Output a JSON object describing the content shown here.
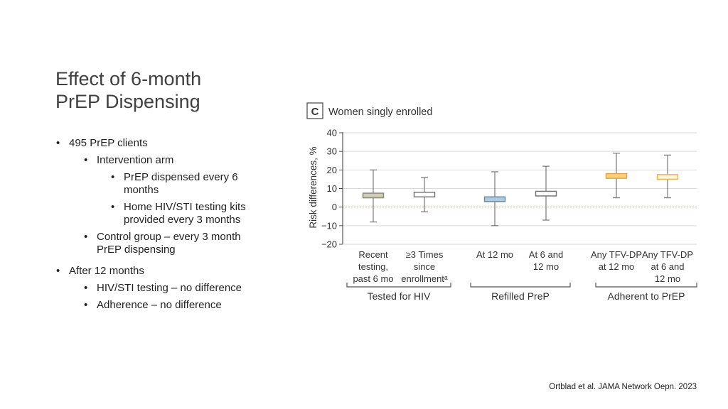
{
  "slide": {
    "title_line1": "Effect of 6-month",
    "title_line2": "PrEP Dispensing",
    "bullets": {
      "b1": "495 PrEP clients",
      "b1_1": "Intervention arm",
      "b1_1_1": "PrEP dispensed every 6 months",
      "b1_1_2": "Home HIV/STI testing kits provided every 3 months",
      "b1_2": "Control group – every 3 month PrEP dispensing",
      "b2": "After 12 months",
      "b2_1": "HIV/STI testing – no difference",
      "b2_2": "Adherence – no difference"
    },
    "citation": "Ortblad et al. JAMA Network Oepn. 2023"
  },
  "chart_data": {
    "type": "box",
    "panel_label": "C",
    "title": "Women singly enrolled",
    "ylabel": "Risk differences, %",
    "ylim": [
      -20,
      40
    ],
    "yticks": [
      -20,
      -10,
      0,
      10,
      20,
      30,
      40
    ],
    "reference_line": 0,
    "categories": [
      {
        "label": [
          "Recent",
          "testing,",
          "past 6 mo"
        ],
        "group": "Tested for HIV",
        "min": -8,
        "q1": 5,
        "q3": 7.5,
        "max": 20,
        "color": "#cfcbb8",
        "stroke": "#8d8a78"
      },
      {
        "label": [
          "≥3 Times",
          "since",
          "enrollmentᵃ"
        ],
        "group": "Tested for HIV",
        "min": -2.5,
        "q1": 5.5,
        "q3": 8,
        "max": 16,
        "color": "#ffffff",
        "stroke": "#777777"
      },
      {
        "label": [
          "At 12 mo"
        ],
        "group": "Refilled PreP",
        "min": -10,
        "q1": 3,
        "q3": 5.5,
        "max": 19,
        "color": "#aecbe0",
        "stroke": "#6d8ca4"
      },
      {
        "label": [
          "At 6 and",
          "12 mo"
        ],
        "group": "Refilled PreP",
        "min": -7,
        "q1": 6,
        "q3": 8.5,
        "max": 22,
        "color": "#ffffff",
        "stroke": "#777777"
      },
      {
        "label": [
          "Any TFV-DP",
          "at 12 mo"
        ],
        "group": "Adherent to PrEP",
        "min": 5,
        "q1": 15.5,
        "q3": 18,
        "max": 29,
        "color": "#fbd17b",
        "stroke": "#e8a33c"
      },
      {
        "label": [
          "Any TFV-DP",
          "at 6 and",
          "12 mo"
        ],
        "group": "Adherent to PrEP",
        "min": 5,
        "q1": 15,
        "q3": 17.5,
        "max": 28,
        "color": "#fff6e2",
        "stroke": "#f0b34a"
      }
    ],
    "groups": [
      "Tested for HIV",
      "Refilled PreP",
      "Adherent to PrEP"
    ],
    "colors": {
      "axis": "#555555",
      "grid": "#d9d9d9",
      "reference": "#f39a3c"
    }
  }
}
